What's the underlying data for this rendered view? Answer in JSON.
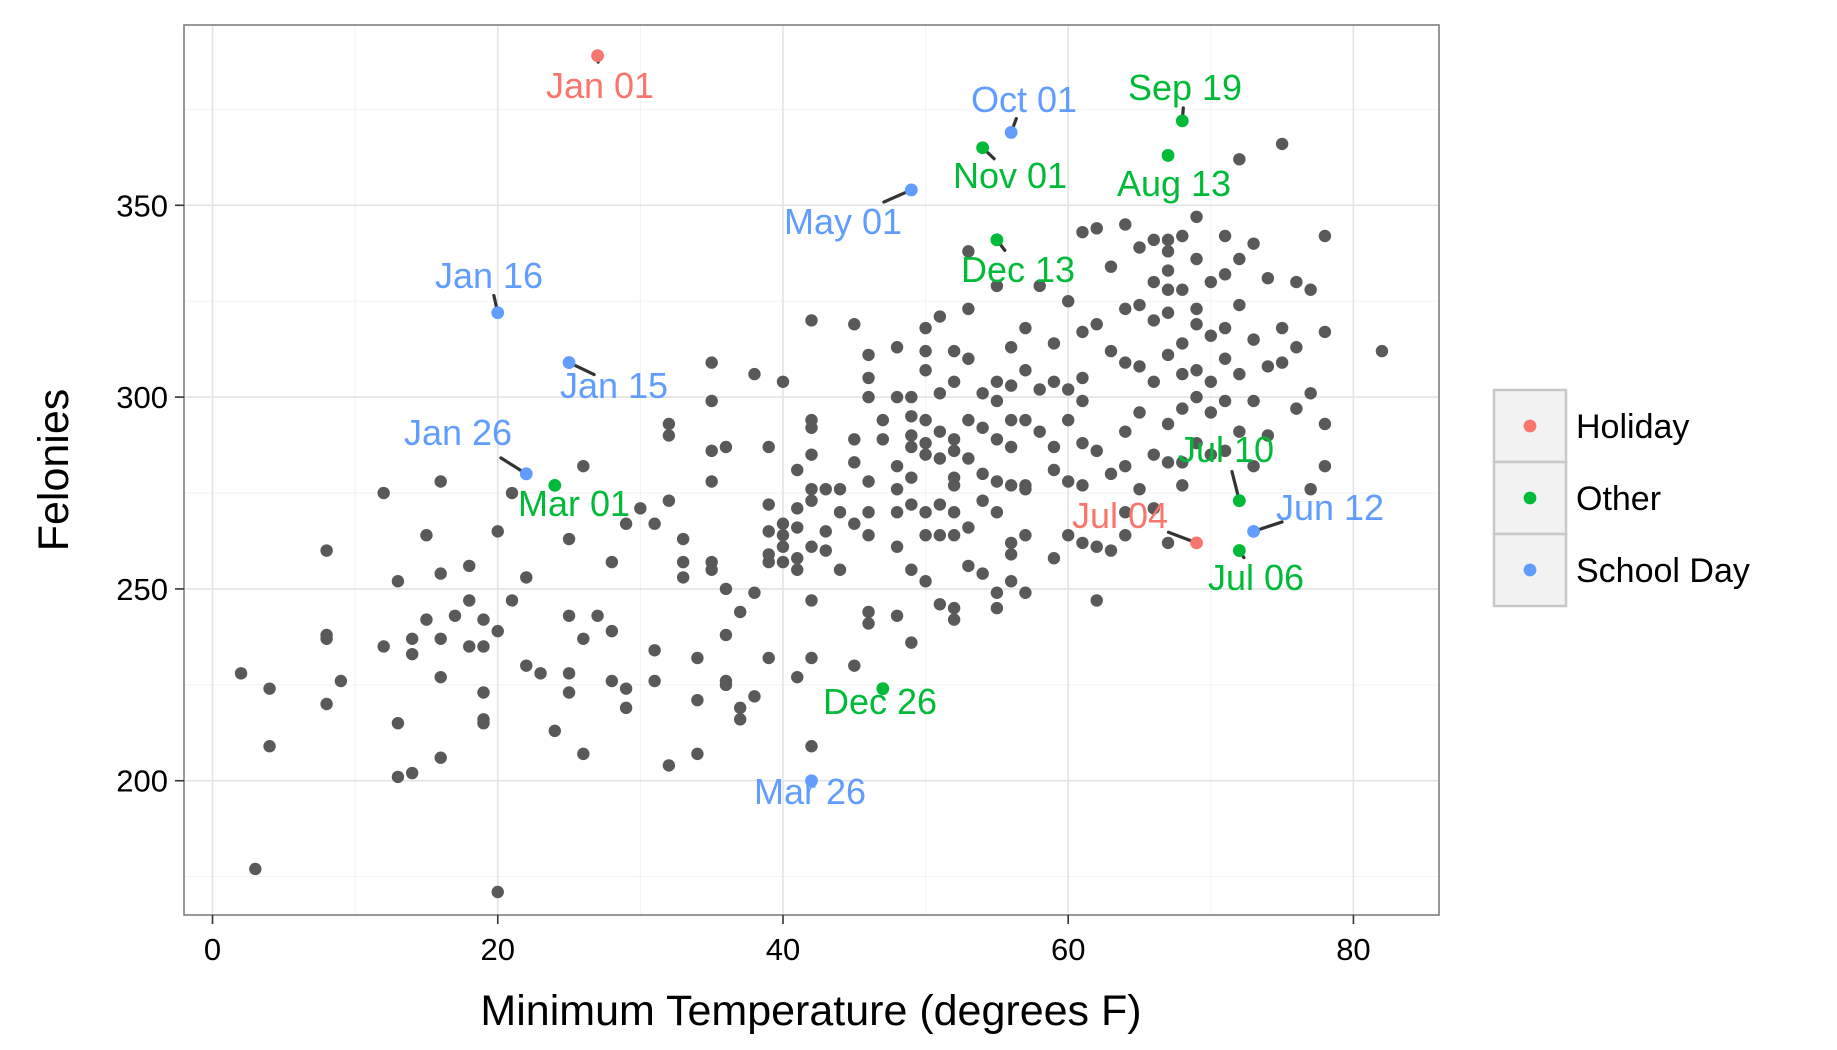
{
  "chart_data": {
    "type": "scatter",
    "title": "",
    "xlabel": "Minimum Temperature (degrees F)",
    "ylabel": "Felonies",
    "xlim": [
      -2,
      86
    ],
    "ylim": [
      165,
      397
    ],
    "x_ticks": [
      0,
      20,
      40,
      60,
      80
    ],
    "y_ticks": [
      200,
      250,
      300,
      350
    ],
    "grid": true,
    "legend_position": "right",
    "colors": {
      "Holiday": "#F8766D",
      "Other": "#00BA38",
      "School Day": "#619CFF",
      "base": "#595959"
    },
    "legend": [
      {
        "key": "holiday",
        "label": "Holiday",
        "color": "#F8766D"
      },
      {
        "key": "other",
        "label": "Other",
        "color": "#00BA38"
      },
      {
        "key": "school",
        "label": "School Day",
        "color": "#619CFF"
      }
    ],
    "series": [
      {
        "name": "Holiday",
        "points": [
          {
            "x": 27,
            "y": 389,
            "label": "Jan 01"
          },
          {
            "x": 69,
            "y": 262,
            "label": "Jul 04"
          }
        ]
      },
      {
        "name": "Other",
        "points": [
          {
            "x": 68,
            "y": 372,
            "label": "Sep 19"
          },
          {
            "x": 54,
            "y": 365,
            "label": "Nov 01"
          },
          {
            "x": 67,
            "y": 363,
            "label": "Aug 13"
          },
          {
            "x": 55,
            "y": 341,
            "label": "Dec 13"
          },
          {
            "x": 24,
            "y": 277,
            "label": "Mar 01"
          },
          {
            "x": 72,
            "y": 273,
            "label": "Jul 10"
          },
          {
            "x": 72,
            "y": 260,
            "label": "Jul 06"
          },
          {
            "x": 47,
            "y": 224,
            "label": "Dec 26"
          }
        ]
      },
      {
        "name": "School Day",
        "points": [
          {
            "x": 56,
            "y": 369,
            "label": "Oct 01"
          },
          {
            "x": 49,
            "y": 354,
            "label": "May 01"
          },
          {
            "x": 20,
            "y": 322,
            "label": "Jan 16"
          },
          {
            "x": 25,
            "y": 309,
            "label": "Jan 15"
          },
          {
            "x": 22,
            "y": 280,
            "label": "Jan 26"
          },
          {
            "x": 73,
            "y": 265,
            "label": "Jun 12"
          },
          {
            "x": 42,
            "y": 200,
            "label": "Mar 26"
          }
        ]
      }
    ],
    "background_points": [
      [
        2,
        228
      ],
      [
        3,
        177
      ],
      [
        4,
        224
      ],
      [
        4,
        209
      ],
      [
        8,
        260
      ],
      [
        8,
        238
      ],
      [
        8,
        237
      ],
      [
        8,
        220
      ],
      [
        9,
        226
      ],
      [
        12,
        275
      ],
      [
        12,
        235
      ],
      [
        13,
        252
      ],
      [
        13,
        215
      ],
      [
        13,
        201
      ],
      [
        14,
        237
      ],
      [
        14,
        233
      ],
      [
        14,
        202
      ],
      [
        15,
        264
      ],
      [
        15,
        242
      ],
      [
        16,
        278
      ],
      [
        16,
        254
      ],
      [
        16,
        237
      ],
      [
        16,
        227
      ],
      [
        16,
        206
      ],
      [
        17,
        243
      ],
      [
        18,
        256
      ],
      [
        18,
        247
      ],
      [
        18,
        235
      ],
      [
        19,
        242
      ],
      [
        19,
        235
      ],
      [
        19,
        223
      ],
      [
        19,
        216
      ],
      [
        19,
        215
      ],
      [
        20,
        265
      ],
      [
        20,
        239
      ],
      [
        20,
        171
      ],
      [
        21,
        275
      ],
      [
        21,
        247
      ],
      [
        22,
        253
      ],
      [
        22,
        230
      ],
      [
        23,
        228
      ],
      [
        24,
        213
      ],
      [
        25,
        263
      ],
      [
        25,
        243
      ],
      [
        25,
        228
      ],
      [
        25,
        223
      ],
      [
        26,
        282
      ],
      [
        26,
        237
      ],
      [
        26,
        207
      ],
      [
        27,
        243
      ],
      [
        28,
        257
      ],
      [
        28,
        239
      ],
      [
        28,
        226
      ],
      [
        29,
        267
      ],
      [
        29,
        224
      ],
      [
        29,
        219
      ],
      [
        30,
        271
      ],
      [
        31,
        267
      ],
      [
        31,
        234
      ],
      [
        31,
        226
      ],
      [
        32,
        293
      ],
      [
        32,
        290
      ],
      [
        32,
        273
      ],
      [
        32,
        204
      ],
      [
        33,
        263
      ],
      [
        33,
        257
      ],
      [
        33,
        253
      ],
      [
        34,
        232
      ],
      [
        34,
        221
      ],
      [
        34,
        207
      ],
      [
        35,
        309
      ],
      [
        35,
        299
      ],
      [
        35,
        286
      ],
      [
        35,
        278
      ],
      [
        35,
        257
      ],
      [
        35,
        255
      ],
      [
        36,
        287
      ],
      [
        36,
        250
      ],
      [
        36,
        238
      ],
      [
        36,
        226
      ],
      [
        36,
        225
      ],
      [
        37,
        244
      ],
      [
        37,
        219
      ],
      [
        37,
        216
      ],
      [
        38,
        306
      ],
      [
        38,
        249
      ],
      [
        38,
        222
      ],
      [
        39,
        287
      ],
      [
        39,
        272
      ],
      [
        39,
        265
      ],
      [
        39,
        259
      ],
      [
        39,
        257
      ],
      [
        39,
        232
      ],
      [
        40,
        304
      ],
      [
        40,
        267
      ],
      [
        40,
        264
      ],
      [
        40,
        261
      ],
      [
        40,
        257
      ],
      [
        41,
        281
      ],
      [
        41,
        271
      ],
      [
        41,
        266
      ],
      [
        41,
        258
      ],
      [
        41,
        255
      ],
      [
        41,
        227
      ],
      [
        42,
        320
      ],
      [
        42,
        294
      ],
      [
        42,
        292
      ],
      [
        42,
        285
      ],
      [
        42,
        276
      ],
      [
        42,
        273
      ],
      [
        42,
        261
      ],
      [
        42,
        247
      ],
      [
        42,
        232
      ],
      [
        42,
        209
      ],
      [
        43,
        276
      ],
      [
        43,
        265
      ],
      [
        43,
        260
      ],
      [
        44,
        276
      ],
      [
        44,
        270
      ],
      [
        44,
        255
      ],
      [
        45,
        319
      ],
      [
        45,
        289
      ],
      [
        45,
        283
      ],
      [
        45,
        267
      ],
      [
        45,
        230
      ],
      [
        46,
        311
      ],
      [
        46,
        305
      ],
      [
        46,
        300
      ],
      [
        46,
        278
      ],
      [
        46,
        270
      ],
      [
        46,
        264
      ],
      [
        46,
        244
      ],
      [
        46,
        241
      ],
      [
        47,
        294
      ],
      [
        47,
        289
      ],
      [
        48,
        313
      ],
      [
        48,
        300
      ],
      [
        48,
        282
      ],
      [
        48,
        276
      ],
      [
        48,
        270
      ],
      [
        48,
        261
      ],
      [
        48,
        243
      ],
      [
        49,
        300
      ],
      [
        49,
        295
      ],
      [
        49,
        290
      ],
      [
        49,
        287
      ],
      [
        49,
        279
      ],
      [
        49,
        272
      ],
      [
        49,
        255
      ],
      [
        49,
        236
      ],
      [
        50,
        318
      ],
      [
        50,
        312
      ],
      [
        50,
        307
      ],
      [
        50,
        294
      ],
      [
        50,
        288
      ],
      [
        50,
        285
      ],
      [
        50,
        270
      ],
      [
        50,
        264
      ],
      [
        50,
        252
      ],
      [
        51,
        321
      ],
      [
        51,
        301
      ],
      [
        51,
        291
      ],
      [
        51,
        284
      ],
      [
        51,
        272
      ],
      [
        51,
        264
      ],
      [
        51,
        246
      ],
      [
        52,
        312
      ],
      [
        52,
        304
      ],
      [
        52,
        289
      ],
      [
        52,
        286
      ],
      [
        52,
        279
      ],
      [
        52,
        277
      ],
      [
        52,
        270
      ],
      [
        52,
        264
      ],
      [
        52,
        245
      ],
      [
        52,
        242
      ],
      [
        53,
        338
      ],
      [
        53,
        323
      ],
      [
        53,
        310
      ],
      [
        53,
        294
      ],
      [
        53,
        284
      ],
      [
        53,
        266
      ],
      [
        53,
        256
      ],
      [
        54,
        301
      ],
      [
        54,
        292
      ],
      [
        54,
        280
      ],
      [
        54,
        273
      ],
      [
        54,
        254
      ],
      [
        55,
        329
      ],
      [
        55,
        304
      ],
      [
        55,
        299
      ],
      [
        55,
        289
      ],
      [
        55,
        278
      ],
      [
        55,
        270
      ],
      [
        55,
        249
      ],
      [
        55,
        245
      ],
      [
        56,
        313
      ],
      [
        56,
        303
      ],
      [
        56,
        294
      ],
      [
        56,
        287
      ],
      [
        56,
        277
      ],
      [
        56,
        262
      ],
      [
        56,
        259
      ],
      [
        56,
        252
      ],
      [
        57,
        318
      ],
      [
        57,
        307
      ],
      [
        57,
        294
      ],
      [
        57,
        277
      ],
      [
        57,
        276
      ],
      [
        57,
        264
      ],
      [
        57,
        249
      ],
      [
        58,
        329
      ],
      [
        58,
        302
      ],
      [
        58,
        291
      ],
      [
        59,
        314
      ],
      [
        59,
        304
      ],
      [
        59,
        287
      ],
      [
        59,
        281
      ],
      [
        59,
        258
      ],
      [
        60,
        325
      ],
      [
        60,
        302
      ],
      [
        60,
        294
      ],
      [
        60,
        278
      ],
      [
        60,
        264
      ],
      [
        61,
        343
      ],
      [
        61,
        317
      ],
      [
        61,
        305
      ],
      [
        61,
        299
      ],
      [
        61,
        288
      ],
      [
        61,
        277
      ],
      [
        61,
        262
      ],
      [
        62,
        344
      ],
      [
        62,
        319
      ],
      [
        62,
        286
      ],
      [
        62,
        261
      ],
      [
        62,
        247
      ],
      [
        63,
        334
      ],
      [
        63,
        312
      ],
      [
        63,
        280
      ],
      [
        63,
        260
      ],
      [
        64,
        345
      ],
      [
        64,
        323
      ],
      [
        64,
        309
      ],
      [
        64,
        291
      ],
      [
        64,
        282
      ],
      [
        64,
        270
      ],
      [
        64,
        264
      ],
      [
        65,
        339
      ],
      [
        65,
        324
      ],
      [
        65,
        308
      ],
      [
        65,
        296
      ],
      [
        65,
        276
      ],
      [
        66,
        341
      ],
      [
        66,
        330
      ],
      [
        66,
        320
      ],
      [
        66,
        304
      ],
      [
        66,
        285
      ],
      [
        66,
        271
      ],
      [
        67,
        341
      ],
      [
        67,
        338
      ],
      [
        67,
        333
      ],
      [
        67,
        328
      ],
      [
        67,
        322
      ],
      [
        67,
        311
      ],
      [
        67,
        293
      ],
      [
        67,
        283
      ],
      [
        67,
        262
      ],
      [
        68,
        342
      ],
      [
        68,
        328
      ],
      [
        68,
        314
      ],
      [
        68,
        306
      ],
      [
        68,
        297
      ],
      [
        68,
        283
      ],
      [
        68,
        277
      ],
      [
        69,
        347
      ],
      [
        69,
        336
      ],
      [
        69,
        323
      ],
      [
        69,
        319
      ],
      [
        69,
        307
      ],
      [
        69,
        300
      ],
      [
        69,
        288
      ],
      [
        70,
        330
      ],
      [
        70,
        316
      ],
      [
        70,
        304
      ],
      [
        70,
        296
      ],
      [
        70,
        285
      ],
      [
        71,
        342
      ],
      [
        71,
        332
      ],
      [
        71,
        318
      ],
      [
        71,
        310
      ],
      [
        71,
        299
      ],
      [
        71,
        286
      ],
      [
        72,
        362
      ],
      [
        72,
        336
      ],
      [
        72,
        324
      ],
      [
        72,
        306
      ],
      [
        72,
        291
      ],
      [
        73,
        340
      ],
      [
        73,
        315
      ],
      [
        73,
        299
      ],
      [
        73,
        282
      ],
      [
        74,
        331
      ],
      [
        74,
        308
      ],
      [
        74,
        290
      ],
      [
        75,
        366
      ],
      [
        75,
        318
      ],
      [
        75,
        309
      ],
      [
        76,
        330
      ],
      [
        76,
        313
      ],
      [
        76,
        297
      ],
      [
        77,
        328
      ],
      [
        77,
        301
      ],
      [
        77,
        276
      ],
      [
        78,
        342
      ],
      [
        78,
        317
      ],
      [
        78,
        293
      ],
      [
        78,
        282
      ],
      [
        82,
        312
      ]
    ]
  }
}
